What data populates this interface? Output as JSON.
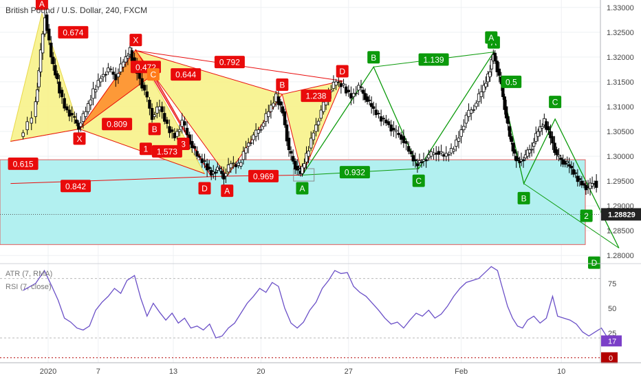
{
  "header": {
    "title": "British Pound / U.S. Dollar, 240, FXCM"
  },
  "indicators": {
    "atr_label": "ATR (7, RMA)",
    "rsi_label": "RSI (7, close)"
  },
  "colors": {
    "green": "#0b9a0b",
    "red": "#e90b0b",
    "orange": "#ff7b1a",
    "yellow_fill": "#f7f28a",
    "cyan_fill": "#b2f0f0",
    "rsi_line": "#6a4fc7",
    "badge_dark": "#222222",
    "badge_purple": "#7b3fc8",
    "badge_red": "#b30000"
  },
  "chart_data": [
    {
      "type": "candlestick",
      "title": "British Pound / U.S. Dollar, 240, FXCM",
      "xlabel": "",
      "ylabel": "",
      "x_ticks": [
        "2020",
        "7",
        "13",
        "20",
        "27",
        "Feb",
        "10"
      ],
      "y_ticks": [
        "1.33000",
        "1.32500",
        "1.32000",
        "1.31500",
        "1.31000",
        "1.30500",
        "1.30000",
        "1.29500",
        "1.29000",
        "1.28500",
        "1.28000"
      ],
      "ylim": [
        1.2785,
        1.3315
      ],
      "last_price": "1.28829",
      "price_line": 1.28829,
      "zone": {
        "top": 1.2993,
        "bottom": 1.2822
      },
      "grid": true,
      "close_series": [
        [
          -2.0,
          1.304
        ],
        [
          -1.0,
          1.308
        ],
        [
          -0.6,
          1.317
        ],
        [
          -0.1,
          1.3285
        ],
        [
          0.4,
          1.32
        ],
        [
          0.9,
          1.315
        ],
        [
          1.5,
          1.31
        ],
        [
          2.1,
          1.308
        ],
        [
          2.6,
          1.306
        ],
        [
          3.2,
          1.309
        ],
        [
          3.8,
          1.313
        ],
        [
          4.4,
          1.316
        ],
        [
          5.0,
          1.3175
        ],
        [
          5.6,
          1.316
        ],
        [
          6.2,
          1.319
        ],
        [
          6.7,
          1.3213
        ],
        [
          7.3,
          1.317
        ],
        [
          7.9,
          1.313
        ],
        [
          8.5,
          1.308
        ],
        [
          9.1,
          1.31
        ],
        [
          9.7,
          1.306
        ],
        [
          10.3,
          1.304
        ],
        [
          10.9,
          1.307
        ],
        [
          11.5,
          1.303
        ],
        [
          12.1,
          1.3
        ],
        [
          12.7,
          1.2985
        ],
        [
          13.2,
          1.2965
        ],
        [
          13.7,
          1.2975
        ],
        [
          14.2,
          1.296
        ],
        [
          14.8,
          1.2985
        ],
        [
          15.4,
          1.298
        ],
        [
          16.0,
          1.302
        ],
        [
          16.6,
          1.304
        ],
        [
          17.2,
          1.306
        ],
        [
          17.8,
          1.309
        ],
        [
          18.4,
          1.312
        ],
        [
          18.9,
          1.309
        ],
        [
          19.4,
          1.301
        ],
        [
          19.9,
          1.298
        ],
        [
          20.3,
          1.2965
        ],
        [
          20.8,
          1.3
        ],
        [
          21.4,
          1.305
        ],
        [
          22.0,
          1.309
        ],
        [
          22.6,
          1.313
        ],
        [
          23.2,
          1.315
        ],
        [
          23.8,
          1.314
        ],
        [
          24.4,
          1.312
        ],
        [
          25.0,
          1.314
        ],
        [
          25.5,
          1.312
        ],
        [
          26.0,
          1.31
        ],
        [
          26.6,
          1.308
        ],
        [
          27.2,
          1.307
        ],
        [
          27.8,
          1.305
        ],
        [
          28.4,
          1.304
        ],
        [
          29.0,
          1.301
        ],
        [
          29.5,
          1.2985
        ],
        [
          30.0,
          1.299
        ],
        [
          30.6,
          1.3
        ],
        [
          31.2,
          1.301
        ],
        [
          31.8,
          1.3
        ],
        [
          32.4,
          1.301
        ],
        [
          33.0,
          1.304
        ],
        [
          33.6,
          1.308
        ],
        [
          34.2,
          1.31
        ],
        [
          34.8,
          1.313
        ],
        [
          35.3,
          1.316
        ],
        [
          35.7,
          1.3208
        ],
        [
          36.2,
          1.316
        ],
        [
          36.6,
          1.31
        ],
        [
          37.0,
          1.304
        ],
        [
          37.4,
          1.3
        ],
        [
          37.8,
          1.299
        ],
        [
          38.3,
          1.3
        ],
        [
          38.8,
          1.302
        ],
        [
          39.3,
          1.305
        ],
        [
          39.8,
          1.307
        ],
        [
          40.3,
          1.304
        ],
        [
          40.8,
          1.3
        ],
        [
          41.3,
          1.299
        ],
        [
          41.8,
          1.298
        ],
        [
          42.3,
          1.296
        ],
        [
          42.8,
          1.2945
        ],
        [
          43.3,
          1.2935
        ],
        [
          43.8,
          1.295
        ],
        [
          44.2,
          1.292
        ],
        [
          44.6,
          1.289
        ]
      ],
      "patterns": [
        {
          "name": "left-yellow",
          "points": [
            [
              -3.0,
              1.303
            ],
            [
              -0.5,
              1.3288
            ],
            [
              2.5,
              1.3055
            ],
            [
              7.0,
              1.3215
            ],
            [
              12.5,
              1.2965
            ]
          ],
          "ratios": [
            "0.615",
            "0.674",
            "0.809",
            "0.842",
            "0.644"
          ]
        },
        {
          "name": "orange-abc",
          "points": [
            [
              2.5,
              1.3055
            ],
            [
              7.0,
              1.3215
            ],
            [
              8.4,
              1.3165
            ],
            [
              13.0,
              1.296
            ]
          ],
          "ratios": [
            "0.472",
            "1.573"
          ]
        },
        {
          "name": "middle-yellow",
          "points": [
            [
              7.0,
              1.3213
            ],
            [
              14.3,
              1.296
            ],
            [
              18.7,
              1.3125
            ],
            [
              20.3,
              1.2962
            ],
            [
              23.5,
              1.3152
            ]
          ],
          "ratios": [
            "0.792",
            "0.969",
            "1.238"
          ]
        },
        {
          "name": "green-xabcd",
          "points": [
            [
              20.3,
              1.2962
            ],
            [
              26.0,
              1.318
            ],
            [
              29.6,
              1.2975
            ],
            [
              35.6,
              1.321
            ],
            [
              38.0,
              1.2945
            ],
            [
              40.5,
              1.3075
            ],
            [
              45.6,
              1.2815
            ]
          ],
          "ratios": [
            "0.932",
            "1.139",
            "0.5"
          ]
        }
      ],
      "labels": [
        {
          "text": "A",
          "color": "red",
          "x": -0.5,
          "y": 1.3288,
          "pos": "above"
        },
        {
          "text": "0.674",
          "color": "red",
          "x": 2.0,
          "y": 1.325
        },
        {
          "text": "X",
          "color": "red",
          "x": 7.0,
          "y": 1.3215,
          "pos": "above"
        },
        {
          "text": "0.472",
          "color": "red",
          "x": 7.8,
          "y": 1.318
        },
        {
          "text": "C",
          "color": "orange",
          "x": 8.4,
          "y": 1.3165
        },
        {
          "text": "0.644",
          "color": "red",
          "x": 11.0,
          "y": 1.3165
        },
        {
          "text": "0.792",
          "color": "red",
          "x": 14.5,
          "y": 1.319
        },
        {
          "text": "D",
          "color": "red",
          "x": 23.5,
          "y": 1.3152,
          "pos": "above"
        },
        {
          "text": "B",
          "color": "red",
          "x": 18.7,
          "y": 1.3125,
          "pos": "above"
        },
        {
          "text": "1.238",
          "color": "red",
          "x": 21.4,
          "y": 1.3122
        },
        {
          "text": "0.809",
          "color": "red",
          "x": 5.5,
          "y": 1.3065
        },
        {
          "text": "B",
          "color": "red",
          "x": 8.5,
          "y": 1.3055
        },
        {
          "text": "X",
          "color": "red",
          "x": 2.5,
          "y": 1.3055,
          "pos": "below"
        },
        {
          "text": "3",
          "color": "red",
          "x": 10.8,
          "y": 1.3025
        },
        {
          "text": "1",
          "color": "red",
          "x": 7.8,
          "y": 1.3015
        },
        {
          "text": "1.573",
          "color": "red",
          "x": 9.5,
          "y": 1.301
        },
        {
          "text": "0.615",
          "color": "red",
          "x": -2.0,
          "y": 1.2985
        },
        {
          "text": "D",
          "color": "red",
          "x": 12.5,
          "y": 1.2955,
          "pos": "below"
        },
        {
          "text": "A",
          "color": "red",
          "x": 14.3,
          "y": 1.295,
          "pos": "below"
        },
        {
          "text": "0.842",
          "color": "red",
          "x": 2.2,
          "y": 1.294
        },
        {
          "text": "0.969",
          "color": "red",
          "x": 17.2,
          "y": 1.296
        },
        {
          "text": "A",
          "color": "green",
          "x": 20.3,
          "y": 1.2955,
          "pos": "below"
        },
        {
          "text": "0.932",
          "color": "green",
          "x": 24.5,
          "y": 1.2968
        },
        {
          "text": "B",
          "color": "green",
          "x": 26.0,
          "y": 1.318,
          "pos": "above"
        },
        {
          "text": "1.139",
          "color": "green",
          "x": 30.8,
          "y": 1.3195
        },
        {
          "text": "C",
          "color": "green",
          "x": 29.6,
          "y": 1.297,
          "pos": "below"
        },
        {
          "text": "A",
          "color": "green",
          "x": 35.6,
          "y": 1.321,
          "pos": "above"
        },
        {
          "text": "A",
          "color": "green",
          "x": 35.4,
          "y": 1.322,
          "pos": "above"
        },
        {
          "text": "0.5",
          "color": "green",
          "x": 37.0,
          "y": 1.315
        },
        {
          "text": "C",
          "color": "green",
          "x": 40.5,
          "y": 1.309,
          "pos": "above"
        },
        {
          "text": "B",
          "color": "green",
          "x": 38.0,
          "y": 1.2935,
          "pos": "below"
        },
        {
          "text": "2",
          "color": "green",
          "x": 43.0,
          "y": 1.288
        },
        {
          "text": "D",
          "color": "green",
          "x": 45.6,
          "y": 1.2805,
          "pos": "below"
        }
      ]
    },
    {
      "type": "line",
      "title": "RSI (7, close)",
      "y_ticks": [
        "75",
        "50",
        "25",
        "0"
      ],
      "ylim": [
        -5,
        95
      ],
      "dotted_levels": [
        80,
        20
      ],
      "last_value": "17",
      "zero_badge": "0",
      "values": [
        [
          -2.0,
          68
        ],
        [
          -1.0,
          75
        ],
        [
          -0.3,
          88
        ],
        [
          0.3,
          72
        ],
        [
          0.8,
          58
        ],
        [
          1.3,
          40
        ],
        [
          1.8,
          36
        ],
        [
          2.3,
          30
        ],
        [
          2.8,
          28
        ],
        [
          3.3,
          32
        ],
        [
          3.8,
          48
        ],
        [
          4.3,
          56
        ],
        [
          4.8,
          62
        ],
        [
          5.3,
          70
        ],
        [
          5.8,
          65
        ],
        [
          6.3,
          78
        ],
        [
          6.9,
          83
        ],
        [
          7.4,
          60
        ],
        [
          7.9,
          42
        ],
        [
          8.4,
          55
        ],
        [
          8.9,
          46
        ],
        [
          9.4,
          38
        ],
        [
          9.9,
          45
        ],
        [
          10.4,
          35
        ],
        [
          10.9,
          40
        ],
        [
          11.4,
          30
        ],
        [
          11.9,
          32
        ],
        [
          12.4,
          28
        ],
        [
          12.9,
          34
        ],
        [
          13.4,
          20
        ],
        [
          13.9,
          22
        ],
        [
          14.4,
          30
        ],
        [
          14.9,
          35
        ],
        [
          15.4,
          45
        ],
        [
          15.9,
          55
        ],
        [
          16.4,
          62
        ],
        [
          16.9,
          70
        ],
        [
          17.4,
          66
        ],
        [
          17.9,
          76
        ],
        [
          18.4,
          72
        ],
        [
          18.9,
          50
        ],
        [
          19.4,
          35
        ],
        [
          19.9,
          30
        ],
        [
          20.4,
          36
        ],
        [
          20.9,
          48
        ],
        [
          21.4,
          56
        ],
        [
          21.9,
          70
        ],
        [
          22.4,
          78
        ],
        [
          22.9,
          88
        ],
        [
          23.4,
          85
        ],
        [
          23.9,
          86
        ],
        [
          24.4,
          72
        ],
        [
          24.9,
          66
        ],
        [
          25.4,
          62
        ],
        [
          25.9,
          55
        ],
        [
          26.4,
          48
        ],
        [
          26.9,
          40
        ],
        [
          27.4,
          34
        ],
        [
          27.9,
          36
        ],
        [
          28.4,
          30
        ],
        [
          28.9,
          38
        ],
        [
          29.4,
          45
        ],
        [
          29.9,
          42
        ],
        [
          30.4,
          48
        ],
        [
          30.9,
          40
        ],
        [
          31.4,
          44
        ],
        [
          31.9,
          52
        ],
        [
          32.4,
          62
        ],
        [
          32.9,
          70
        ],
        [
          33.4,
          76
        ],
        [
          33.9,
          78
        ],
        [
          34.4,
          80
        ],
        [
          34.9,
          86
        ],
        [
          35.4,
          92
        ],
        [
          35.9,
          88
        ],
        [
          36.3,
          70
        ],
        [
          36.7,
          52
        ],
        [
          37.1,
          40
        ],
        [
          37.5,
          32
        ],
        [
          37.9,
          30
        ],
        [
          38.3,
          38
        ],
        [
          38.8,
          42
        ],
        [
          39.3,
          35
        ],
        [
          39.8,
          40
        ],
        [
          40.3,
          62
        ],
        [
          40.7,
          42
        ],
        [
          41.2,
          40
        ],
        [
          41.7,
          38
        ],
        [
          42.2,
          34
        ],
        [
          42.7,
          26
        ],
        [
          43.2,
          22
        ],
        [
          43.7,
          26
        ],
        [
          44.2,
          30
        ],
        [
          44.6,
          22
        ],
        [
          45.0,
          17
        ]
      ]
    }
  ]
}
